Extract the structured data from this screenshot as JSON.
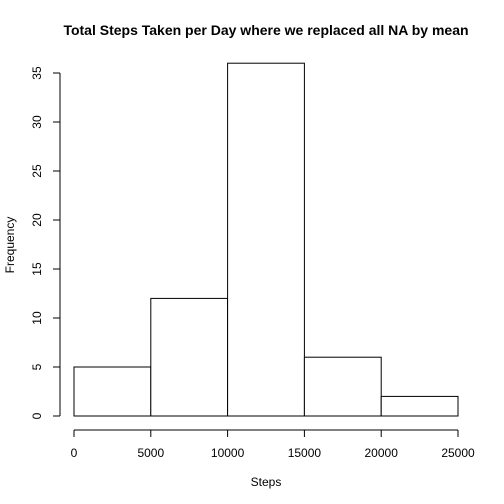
{
  "chart_data": {
    "type": "bar",
    "title": "Total Steps Taken per Day where we replaced all NA by mean",
    "xlabel": "Steps",
    "ylabel": "Frequency",
    "bins": [
      {
        "from": 0,
        "to": 5000,
        "count": 5
      },
      {
        "from": 5000,
        "to": 10000,
        "count": 12
      },
      {
        "from": 10000,
        "to": 15000,
        "count": 36
      },
      {
        "from": 15000,
        "to": 20000,
        "count": 6
      },
      {
        "from": 20000,
        "to": 25000,
        "count": 2
      }
    ],
    "xlim": [
      0,
      25000
    ],
    "ylim": [
      0,
      35
    ],
    "x_ticks": [
      0,
      5000,
      10000,
      15000,
      20000,
      25000
    ],
    "y_ticks": [
      0,
      5,
      10,
      15,
      20,
      25,
      30,
      35
    ],
    "grid": false,
    "bar_fill": "#ffffff",
    "bar_stroke": "#000000"
  }
}
